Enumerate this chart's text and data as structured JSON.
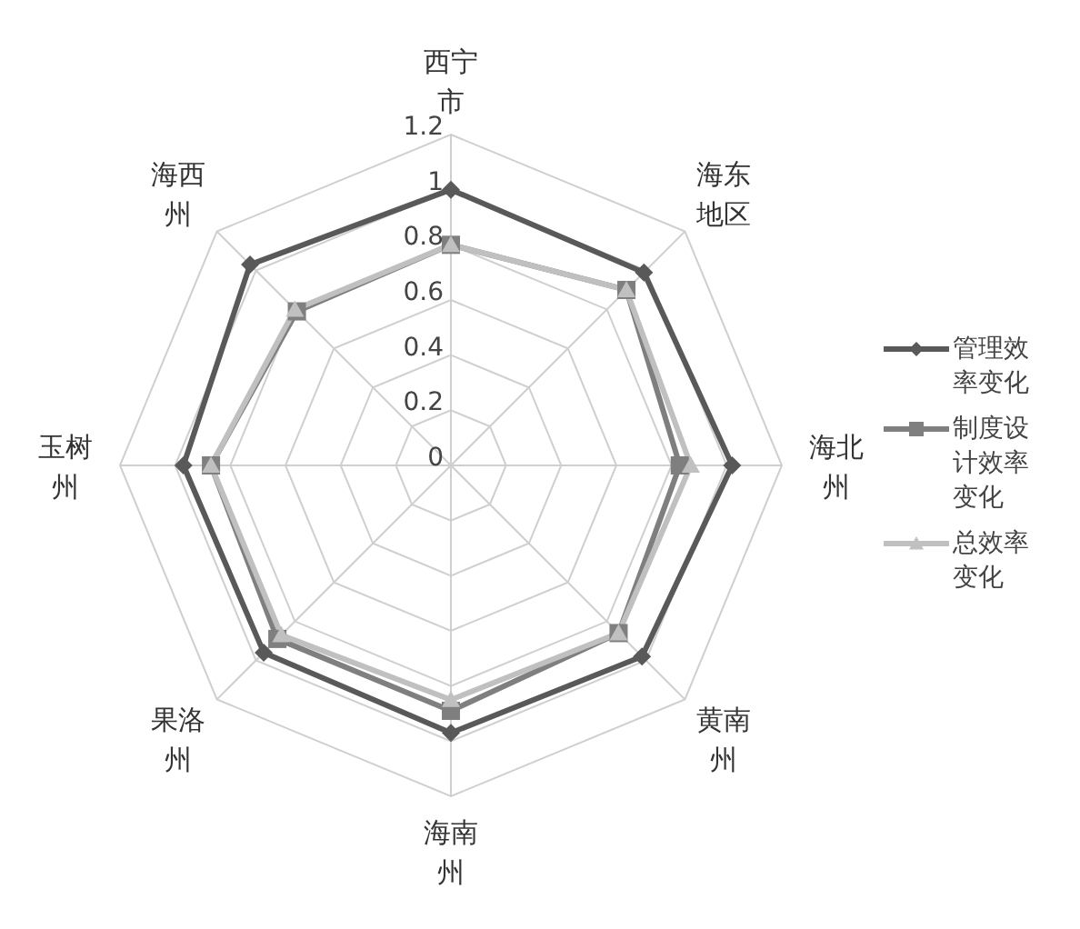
{
  "chart_data": {
    "type": "radar",
    "categories": [
      "西宁市",
      "海东地区",
      "海北州",
      "黄南州",
      "海南州",
      "果洛州",
      "玉树州",
      "海西州"
    ],
    "series": [
      {
        "name": "管理效率变化",
        "color": "#595959",
        "marker": "diamond",
        "values": [
          1.0,
          0.99,
          1.02,
          0.98,
          0.97,
          0.96,
          0.97,
          1.03
        ]
      },
      {
        "name": "制度设计效率变化",
        "color": "#7f7f7f",
        "marker": "square",
        "values": [
          0.8,
          0.9,
          0.83,
          0.86,
          0.89,
          0.89,
          0.87,
          0.79
        ]
      },
      {
        "name": "总效率变化",
        "color": "#c0c0c0",
        "marker": "triangle",
        "values": [
          0.8,
          0.9,
          0.87,
          0.86,
          0.85,
          0.87,
          0.87,
          0.8
        ]
      }
    ],
    "ylim": [
      0,
      1.2
    ],
    "yticks": [
      0,
      0.2,
      0.4,
      0.6,
      0.8,
      1,
      1.2
    ],
    "grid": true,
    "legend": "right"
  }
}
